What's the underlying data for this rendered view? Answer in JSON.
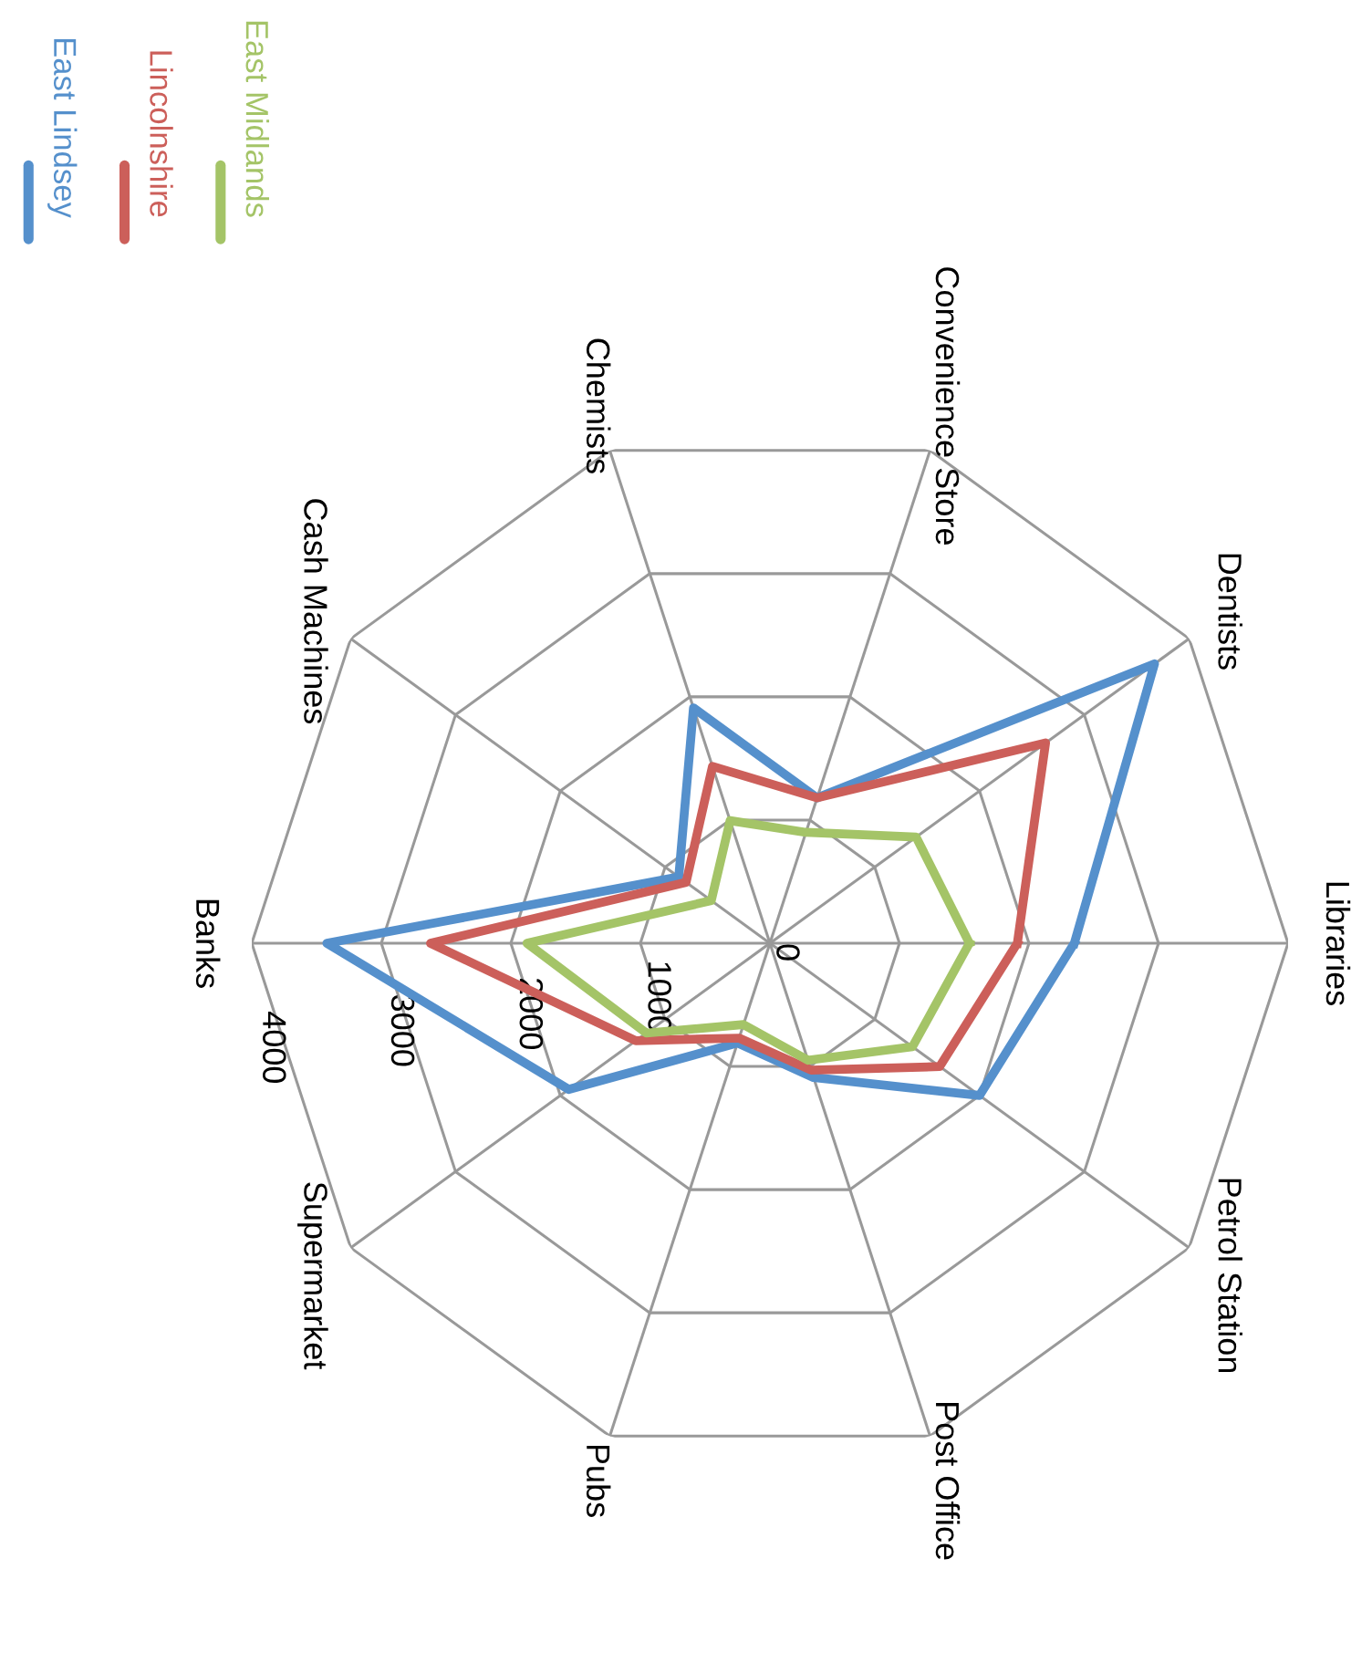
{
  "chart_data": {
    "type": "radar",
    "categories": [
      "Libraries",
      "Petrol Station",
      "Post Office",
      "Pubs",
      "Supermarket",
      "Banks",
      "Cash Machines",
      "Chemists",
      "Convenience Store",
      "Dentists"
    ],
    "series": [
      {
        "name": "East Lindsey",
        "color": "#5590cc",
        "values": [
          2350,
          2000,
          1090,
          810,
          1920,
          3420,
          870,
          1910,
          1180,
          3670
        ]
      },
      {
        "name": "Lincolnshire",
        "color": "#cc5f5a",
        "values": [
          1910,
          1620,
          1030,
          770,
          1280,
          2620,
          800,
          1435,
          1180,
          2630
        ]
      },
      {
        "name": "East Midlands",
        "color": "#a4c467",
        "values": [
          1540,
          1360,
          950,
          660,
          1180,
          1875,
          560,
          995,
          900,
          1395
        ]
      }
    ],
    "ylim": [
      0,
      4000
    ],
    "yticks": [
      0,
      1000,
      2000,
      3000,
      4000
    ],
    "grid": true,
    "legend": "top left",
    "marker": "none",
    "line_style": "solid"
  }
}
